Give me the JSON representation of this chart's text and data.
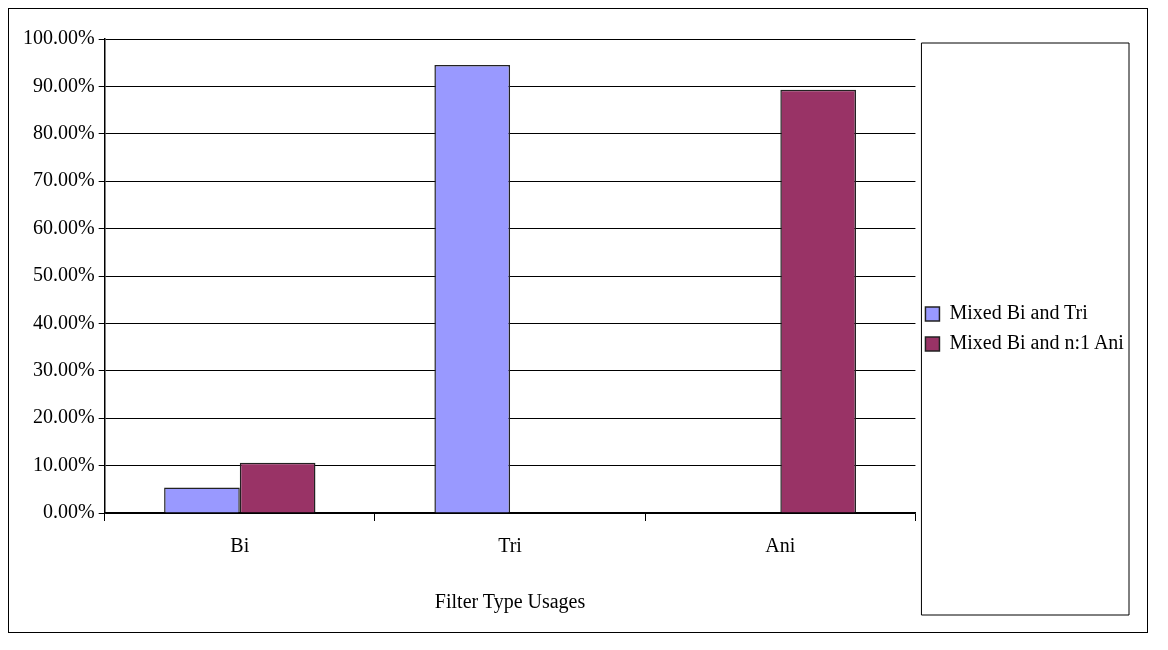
{
  "chart_data": {
    "type": "bar",
    "xlabel": "Filter Type Usages",
    "categories": [
      "Bi",
      "Tri",
      "Ani"
    ],
    "series": [
      {
        "name": "Mixed Bi and Tri",
        "color": "#9999ff",
        "values": [
          5.4,
          94.5,
          0
        ]
      },
      {
        "name": "Mixed Bi and n:1 Ani",
        "color": "#993366",
        "values": [
          10.6,
          0,
          89.3
        ]
      }
    ],
    "ylim": [
      0,
      100
    ],
    "yticks": [
      {
        "value": 0,
        "label": "0.00%"
      },
      {
        "value": 10,
        "label": "10.00%"
      },
      {
        "value": 20,
        "label": "20.00%"
      },
      {
        "value": 30,
        "label": "30.00%"
      },
      {
        "value": 40,
        "label": "40.00%"
      },
      {
        "value": 50,
        "label": "50.00%"
      },
      {
        "value": 60,
        "label": "60.00%"
      },
      {
        "value": 70,
        "label": "70.00%"
      },
      {
        "value": 80,
        "label": "80.00%"
      },
      {
        "value": 90,
        "label": "90.00%"
      },
      {
        "value": 100,
        "label": "100.00%"
      }
    ],
    "grid": "y",
    "legend": "right"
  }
}
